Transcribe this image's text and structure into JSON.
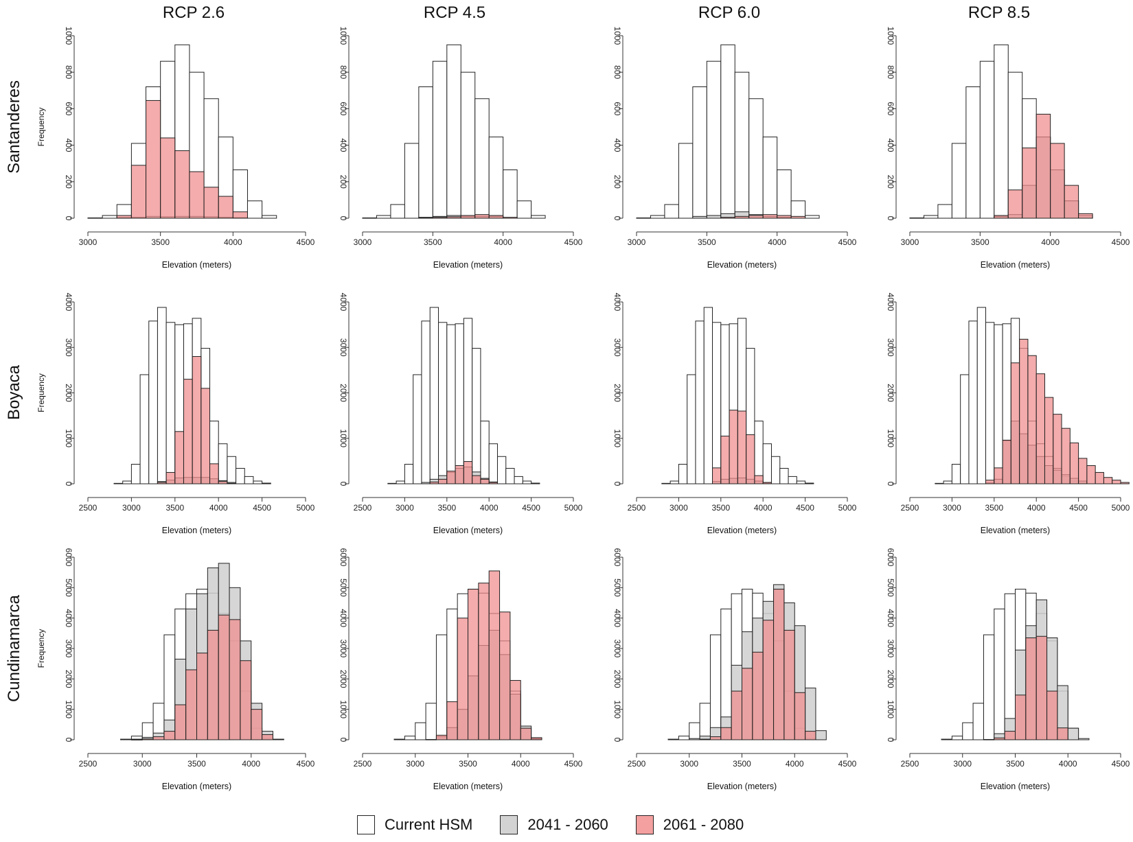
{
  "figure": {
    "columns": [
      "RCP 2.6",
      "RCP 4.5",
      "RCP 6.0",
      "RCP 8.5"
    ],
    "rows": [
      "Santanderes",
      "Boyaca",
      "Cundinamarca"
    ],
    "xlabel": "Elevation (meters)",
    "ylabel": "Frequency"
  },
  "legend": [
    {
      "label": "Current HSM",
      "color": "#ffffff"
    },
    {
      "label": "2041 - 2060",
      "color": "#d3d3d3"
    },
    {
      "label": "2061 - 2080",
      "color": "#f4a0a0"
    }
  ],
  "colors": {
    "current": "#ffffff",
    "mid": "#cfcfcf",
    "late": "#f08c8c",
    "stroke": "#222222"
  },
  "chart_data": [
    {
      "type": "bar",
      "row": "Santanderes",
      "binwidth": 100,
      "xlim": [
        3000,
        4500
      ],
      "xticks": [
        3000,
        3500,
        4000,
        4500
      ],
      "ylim": [
        0,
        1000
      ],
      "yticks": [
        0,
        200,
        400,
        600,
        800,
        1000
      ],
      "current": {
        "start": 3000,
        "values": [
          2,
          15,
          75,
          410,
          720,
          860,
          950,
          800,
          655,
          445,
          265,
          95,
          15
        ]
      },
      "panels": [
        {
          "title": "RCP 2.6",
          "mid": {
            "start": 3200,
            "values": [
              3,
              5,
              10,
              8,
              10,
              10,
              8,
              5,
              3
            ]
          },
          "late": {
            "start": 3200,
            "values": [
              15,
              290,
              645,
              440,
              370,
              255,
              170,
              120,
              35
            ]
          }
        },
        {
          "title": "RCP 4.5",
          "mid": {
            "start": 3400,
            "values": [
              5,
              10,
              15,
              10,
              10,
              10
            ]
          },
          "late": {
            "start": 3400,
            "values": [
              3,
              5,
              8,
              15,
              20,
              15,
              5
            ]
          }
        },
        {
          "title": "RCP 6.0",
          "mid": {
            "start": 3400,
            "values": [
              10,
              15,
              25,
              35,
              20,
              10,
              5
            ]
          },
          "late": {
            "start": 3600,
            "values": [
              5,
              10,
              15,
              20,
              15,
              10
            ]
          }
        },
        {
          "title": "RCP 8.5",
          "mid": {
            "start": 3600,
            "values": [
              10,
              20,
              180,
              445,
              265,
              95,
              15
            ]
          },
          "late": {
            "start": 3600,
            "values": [
              15,
              155,
              385,
              570,
              410,
              180,
              25
            ]
          }
        }
      ]
    },
    {
      "type": "bar",
      "row": "Boyaca",
      "binwidth": 100,
      "xlim": [
        2500,
        5000
      ],
      "xticks": [
        2500,
        3000,
        3500,
        4000,
        4500,
        5000
      ],
      "ylim": [
        0,
        4000
      ],
      "yticks": [
        0,
        1000,
        2000,
        3000,
        4000
      ],
      "current": {
        "start": 2800,
        "values": [
          10,
          60,
          430,
          2400,
          3580,
          3880,
          3550,
          3500,
          3520,
          3640,
          2980,
          1380,
          880,
          600,
          340,
          160,
          60,
          15
        ]
      },
      "panels": [
        {
          "title": "RCP 2.6",
          "mid": {
            "start": 3300,
            "values": [
              50,
              80,
              130,
              140,
              140,
              140,
              110,
              70,
              30
            ]
          },
          "late": {
            "start": 3300,
            "values": [
              30,
              250,
              1150,
              2300,
              2800,
              2100,
              440,
              50,
              10
            ]
          }
        },
        {
          "title": "RCP 4.5",
          "mid": {
            "start": 3200,
            "values": [
              30,
              100,
              180,
              250,
              340,
              370,
              260,
              120,
              40
            ]
          },
          "late": {
            "start": 3300,
            "values": [
              40,
              100,
              280,
              400,
              490,
              180,
              100,
              30
            ]
          }
        },
        {
          "title": "RCP 6.0",
          "mid": {
            "start": 3400,
            "values": [
              50,
              100,
              120,
              130,
              100,
              60,
              20
            ]
          },
          "late": {
            "start": 3400,
            "values": [
              350,
              1050,
              1620,
              1600,
              1080,
              180,
              30
            ]
          }
        },
        {
          "title": "RCP 8.5",
          "mid": {
            "start": 3400,
            "values": [
              20,
              100,
              950,
              1380,
              1100,
              850,
              600,
              400,
              300,
              200,
              120,
              60
            ]
          },
          "late": {
            "start": 3400,
            "values": [
              80,
              350,
              960,
              2660,
              3180,
              2820,
              2420,
              1900,
              1530,
              1220,
              900,
              560,
              400,
              250,
              140,
              80,
              30
            ]
          }
        }
      ]
    },
    {
      "type": "bar",
      "row": "Cundinamarca",
      "binwidth": 100,
      "xlim": [
        2500,
        4500
      ],
      "xticks": [
        2500,
        3000,
        3500,
        4000,
        4500
      ],
      "ylim": [
        0,
        6000
      ],
      "yticks": [
        0,
        1000,
        2000,
        3000,
        4000,
        5000,
        6000
      ],
      "current": {
        "start": 2800,
        "values": [
          20,
          120,
          560,
          1200,
          3450,
          4300,
          4800,
          4950,
          4820,
          4150,
          3250,
          1600,
          380,
          40
        ]
      },
      "panels": [
        {
          "title": "RCP 2.6",
          "mid": {
            "start": 2900,
            "values": [
              20,
              80,
              220,
              650,
              2650,
              4300,
              4800,
              5650,
              5800,
              5000,
              3250,
              1200,
              280,
              20
            ]
          },
          "late": {
            "start": 2900,
            "values": [
              5,
              30,
              100,
              280,
              1150,
              2300,
              2850,
              3600,
              4100,
              3950,
              2600,
              1000,
              170
            ]
          }
        },
        {
          "title": "RCP 4.5",
          "mid": {
            "start": 3100,
            "values": [
              10,
              100,
              400,
              1000,
              2100,
              3100,
              3600,
              2800,
              1500,
              450,
              30
            ]
          },
          "late": {
            "start": 3200,
            "values": [
              150,
              1250,
              4000,
              4950,
              5150,
              5550,
              4200,
              1950,
              380,
              70
            ]
          }
        },
        {
          "title": "RCP 6.0",
          "mid": {
            "start": 3000,
            "values": [
              40,
              120,
              400,
              750,
              2450,
              3550,
              4000,
              4550,
              5100,
              4500,
              3750,
              1700,
              300
            ]
          },
          "late": {
            "start": 3100,
            "values": [
              20,
              100,
              400,
              1600,
              2350,
              2880,
              3930,
              4950,
              3600,
              1550,
              280
            ]
          }
        },
        {
          "title": "RCP 8.5",
          "mid": {
            "start": 3200,
            "values": [
              10,
              200,
              700,
              2950,
              3750,
              4600,
              3350,
              1780,
              380
            ]
          },
          "late": {
            "start": 3300,
            "values": [
              60,
              280,
              1470,
              3350,
              3400,
              1600,
              390
            ]
          }
        }
      ]
    }
  ]
}
